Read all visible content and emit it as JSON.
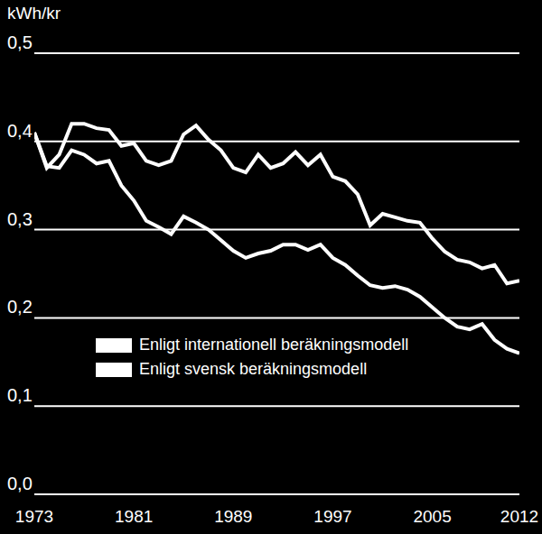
{
  "chart_data": {
    "type": "line",
    "y_label": "kWh/kr",
    "x": [
      1973,
      1974,
      1975,
      1976,
      1977,
      1978,
      1979,
      1980,
      1981,
      1982,
      1983,
      1984,
      1985,
      1986,
      1987,
      1988,
      1989,
      1990,
      1991,
      1992,
      1993,
      1994,
      1995,
      1996,
      1997,
      1998,
      1999,
      2000,
      2001,
      2002,
      2003,
      2004,
      2005,
      2006,
      2007,
      2008,
      2009,
      2010,
      2011,
      2012
    ],
    "series": [
      {
        "name": "Enligt internationell beräkningsmodell",
        "color": "#ffffff",
        "values": [
          0.41,
          0.37,
          0.385,
          0.42,
          0.42,
          0.415,
          0.413,
          0.395,
          0.398,
          0.378,
          0.373,
          0.378,
          0.408,
          0.418,
          0.402,
          0.39,
          0.37,
          0.365,
          0.385,
          0.37,
          0.375,
          0.388,
          0.373,
          0.385,
          0.36,
          0.355,
          0.34,
          0.305,
          0.318,
          0.314,
          0.31,
          0.308,
          0.29,
          0.275,
          0.266,
          0.263,
          0.256,
          0.26,
          0.239,
          0.242
        ]
      },
      {
        "name": "Enligt svensk beräkningsmodell",
        "color": "#ffffff",
        "values": [
          0.41,
          0.372,
          0.37,
          0.39,
          0.385,
          0.375,
          0.378,
          0.35,
          0.333,
          0.31,
          0.303,
          0.295,
          0.315,
          0.308,
          0.3,
          0.288,
          0.276,
          0.268,
          0.273,
          0.276,
          0.283,
          0.283,
          0.277,
          0.283,
          0.268,
          0.26,
          0.248,
          0.237,
          0.234,
          0.236,
          0.232,
          0.224,
          0.212,
          0.2,
          0.19,
          0.187,
          0.193,
          0.175,
          0.165,
          0.16
        ]
      }
    ],
    "xlim": [
      1973,
      2012
    ],
    "xticks": [
      1973,
      1981,
      1989,
      1997,
      2005,
      2012
    ],
    "ylim": [
      0,
      0.5
    ],
    "yticks": [
      {
        "value": 0,
        "label": "0,0"
      },
      {
        "value": 0.1,
        "label": "0,1"
      },
      {
        "value": 0.2,
        "label": "0,2"
      },
      {
        "value": 0.3,
        "label": "0,3"
      },
      {
        "value": 0.4,
        "label": "0,4"
      },
      {
        "value": 0.5,
        "label": "0,5"
      }
    ],
    "grid": true,
    "legend": "lower left"
  }
}
